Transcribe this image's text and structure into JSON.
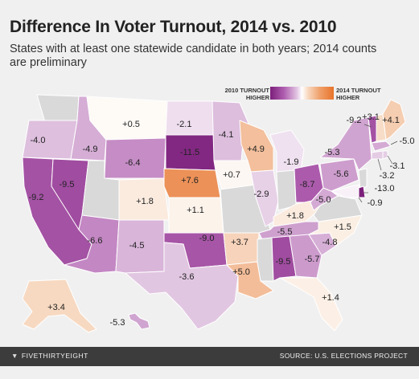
{
  "header": {
    "title": "Difference In Voter Turnout, 2014 vs. 2010",
    "subtitle": "States with at least one statewide candidate in both years; 2014 counts are preliminary"
  },
  "legend": {
    "left_label": "2010 TURNOUT HIGHER",
    "right_label": "2014 TURNOUT HIGHER",
    "colors": {
      "strong_2010": "#7b1f7a",
      "mid_2010": "#b060b0",
      "light_2010": "#dcbcdc",
      "neutral": "#ffffff",
      "light_2014": "#f7dcc6",
      "strong_2014": "#eb8a4e",
      "no_data": "#d9d9d9"
    }
  },
  "states": [
    {
      "state": "WA",
      "value": null
    },
    {
      "state": "OR",
      "value": -4.0
    },
    {
      "state": "CA",
      "value": -9.2
    },
    {
      "state": "NV",
      "value": -9.5
    },
    {
      "state": "ID",
      "value": -4.9
    },
    {
      "state": "MT",
      "value": 0.5
    },
    {
      "state": "WY",
      "value": -6.4
    },
    {
      "state": "UT",
      "value": null
    },
    {
      "state": "AZ",
      "value": -6.6
    },
    {
      "state": "CO",
      "value": 1.8
    },
    {
      "state": "NM",
      "value": -4.5
    },
    {
      "state": "ND",
      "value": -2.1
    },
    {
      "state": "SD",
      "value": -11.5
    },
    {
      "state": "NE",
      "value": 7.6
    },
    {
      "state": "KS",
      "value": 1.1
    },
    {
      "state": "OK",
      "value": -9.0
    },
    {
      "state": "TX",
      "value": -3.6
    },
    {
      "state": "MN",
      "value": -4.1
    },
    {
      "state": "IA",
      "value": 0.7
    },
    {
      "state": "MO",
      "value": null
    },
    {
      "state": "AR",
      "value": 3.7
    },
    {
      "state": "LA",
      "value": 5.0
    },
    {
      "state": "WI",
      "value": 4.9
    },
    {
      "state": "IL",
      "value": -2.9
    },
    {
      "state": "MI",
      "value": -1.9
    },
    {
      "state": "IN",
      "value": null
    },
    {
      "state": "OH",
      "value": -8.7
    },
    {
      "state": "KY",
      "value": 1.8
    },
    {
      "state": "TN",
      "value": -5.5
    },
    {
      "state": "MS",
      "value": null
    },
    {
      "state": "AL",
      "value": -9.5
    },
    {
      "state": "GA",
      "value": -5.7
    },
    {
      "state": "FL",
      "value": 1.4
    },
    {
      "state": "SC",
      "value": -4.8
    },
    {
      "state": "NC",
      "value": 1.5
    },
    {
      "state": "VA",
      "value": null
    },
    {
      "state": "WV",
      "value": -5.0
    },
    {
      "state": "PA",
      "value": -5.6
    },
    {
      "state": "NY",
      "value": -5.3
    },
    {
      "state": "VT",
      "value": -9.2
    },
    {
      "state": "NH",
      "value": 3.1
    },
    {
      "state": "ME",
      "value": 4.1
    },
    {
      "state": "MA",
      "value": -5.0
    },
    {
      "state": "RI",
      "value": -3.1
    },
    {
      "state": "CT",
      "value": -3.2
    },
    {
      "state": "NJ",
      "value": null
    },
    {
      "state": "DE",
      "value": -13.0
    },
    {
      "state": "MD",
      "value": -0.9
    },
    {
      "state": "AK",
      "value": 3.4
    },
    {
      "state": "HI",
      "value": -5.3
    }
  ],
  "labels": [
    "-4.0",
    "-9.2",
    "-9.5",
    "-4.9",
    "+0.5",
    "-6.4",
    "-6.6",
    "+1.8",
    "-4.5",
    "-2.1",
    "-11.5",
    "+7.6",
    "+1.1",
    "-9.0",
    "-3.6",
    "-4.1",
    "+0.7",
    "+3.7",
    "+5.0",
    "+4.9",
    "-2.9",
    "-1.9",
    "-8.7",
    "+1.8",
    "-5.5",
    "-9.5",
    "-5.7",
    "+1.4",
    "-4.8",
    "+1.5",
    "-5.0",
    "-5.6",
    "-5.3",
    "-9.2",
    "+3.1",
    "+4.1",
    "-5.0",
    "-3.1",
    "-3.2",
    "-13.0",
    "-0.9",
    "+3.4",
    "-5.3"
  ],
  "footer": {
    "brand": "FIVETHIRTYEIGHT",
    "source": "SOURCE: U.S. ELECTIONS PROJECT"
  }
}
